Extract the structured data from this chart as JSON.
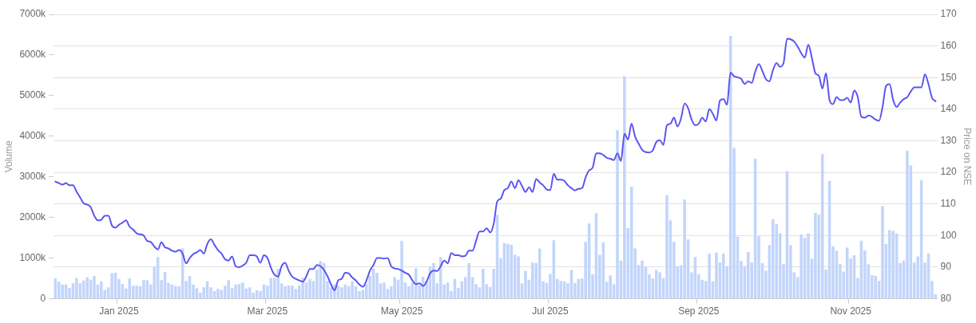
{
  "chart_data": {
    "type": "bar",
    "ylabel": "Volume",
    "y2label": "Price on NSE",
    "categories": [
      null,
      null,
      null,
      null,
      null,
      null,
      null,
      null,
      null,
      null,
      null,
      null,
      null,
      null,
      null,
      null,
      null,
      null,
      "Jan 2025",
      null,
      null,
      null,
      null,
      null,
      null,
      null,
      null,
      null,
      null,
      null,
      null,
      null,
      null,
      null,
      null,
      null,
      null,
      null,
      null,
      null,
      null,
      null,
      null,
      null,
      null,
      null,
      null,
      null,
      null,
      null,
      null,
      null,
      null,
      null,
      null,
      null,
      null,
      null,
      null,
      null,
      "Mar 2025",
      null,
      null,
      null,
      null,
      null,
      null,
      null,
      null,
      null,
      null,
      null,
      null,
      null,
      null,
      null,
      null,
      null,
      null,
      null,
      null,
      null,
      null,
      null,
      null,
      null,
      null,
      null,
      null,
      null,
      null,
      null,
      null,
      null,
      null,
      null,
      null,
      null,
      "May 2025",
      null,
      null,
      null,
      null,
      null,
      null,
      null,
      null,
      null,
      null,
      null,
      null,
      null,
      null,
      null,
      null,
      null,
      null,
      null,
      null,
      null,
      null,
      null,
      null,
      null,
      null,
      null,
      null,
      null,
      null,
      null,
      null,
      null,
      null,
      null,
      null,
      null,
      null,
      null,
      null,
      null,
      "Jul 2025",
      null,
      null,
      null,
      null,
      null,
      null,
      null,
      null,
      null,
      null,
      null,
      null,
      null,
      null,
      null,
      null,
      null,
      null,
      null,
      null,
      null,
      null,
      null,
      null,
      null,
      null,
      null,
      null,
      null,
      null,
      null,
      null,
      null,
      null,
      null,
      null,
      null,
      null,
      null,
      null,
      null,
      "Sep 2025",
      null,
      null,
      null,
      null,
      null,
      null,
      null,
      null,
      null,
      null,
      null,
      null,
      null,
      null,
      null,
      null,
      null,
      null,
      null,
      null,
      null,
      null,
      null,
      null,
      null,
      null,
      null,
      null,
      null,
      null,
      null,
      null,
      null,
      null,
      null,
      null,
      null,
      null,
      null,
      null,
      null,
      null,
      "Nov 2025",
      null,
      null,
      null,
      null,
      null,
      null,
      null,
      null,
      null,
      null,
      null,
      null,
      null,
      null,
      null,
      null,
      null,
      null,
      null,
      null,
      null,
      null,
      null,
      null
    ],
    "series": [
      {
        "color": "#c2d5fb",
        "values": [
          500,
          420,
          350,
          350,
          260,
          380,
          510,
          380,
          450,
          530,
          470,
          560,
          350,
          430,
          220,
          280,
          630,
          640,
          490,
          360,
          250,
          500,
          320,
          320,
          310,
          460,
          460,
          350,
          790,
          1030,
          460,
          660,
          390,
          350,
          310,
          310,
          1240,
          440,
          560,
          350,
          260,
          150,
          280,
          430,
          280,
          190,
          240,
          220,
          320,
          460,
          260,
          350,
          360,
          400,
          250,
          280,
          150,
          210,
          190,
          350,
          320,
          510,
          510,
          740,
          380,
          310,
          330,
          320,
          240,
          330,
          510,
          400,
          490,
          440,
          720,
          930,
          880,
          440,
          280,
          350,
          320,
          280,
          350,
          310,
          430,
          310,
          190,
          220,
          360,
          560,
          740,
          640,
          380,
          400,
          240,
          310,
          530,
          470,
          1420,
          400,
          310,
          400,
          750,
          330,
          540,
          440,
          790,
          880,
          380,
          1030,
          350,
          400,
          190,
          490,
          260,
          430,
          530,
          880,
          530,
          360,
          280,
          740,
          360,
          290,
          740,
          2070,
          1000,
          1370,
          1350,
          1330,
          1080,
          1040,
          380,
          690,
          470,
          890,
          880,
          1240,
          430,
          390,
          610,
          1440,
          490,
          440,
          430,
          380,
          710,
          390,
          490,
          500,
          1400,
          1850,
          600,
          2100,
          1080,
          1390,
          420,
          570,
          360,
          4150,
          940,
          5480,
          1740,
          2760,
          1240,
          830,
          940,
          790,
          600,
          500,
          710,
          650,
          510,
          2550,
          1930,
          1400,
          800,
          820,
          2440,
          1460,
          650,
          1030,
          600,
          460,
          440,
          1110,
          430,
          1140,
          890,
          1110,
          800,
          6470,
          3710,
          1530,
          930,
          800,
          1150,
          890,
          3440,
          1540,
          880,
          690,
          1320,
          1960,
          1840,
          1610,
          850,
          3140,
          1320,
          650,
          530,
          1580,
          1500,
          1610,
          990,
          2110,
          2070,
          3560,
          720,
          2900,
          1290,
          1180,
          850,
          670,
          1260,
          990,
          1070,
          510,
          1430,
          1190,
          850,
          580,
          560,
          440,
          2280,
          1350,
          1690,
          1670,
          1610,
          880,
          940,
          3640,
          3280,
          890,
          1040,
          2920,
          890,
          1110,
          440,
          110
        ]
      },
      {
        "type": "line",
        "axis": "y2",
        "color": "#5b55f2",
        "values": [
          117.1,
          116.6,
          116.1,
          116.6,
          115.9,
          115.9,
          113.9,
          112.1,
          110.2,
          109.8,
          109,
          106.3,
          104.8,
          105,
          106.3,
          106.3,
          103.2,
          102.5,
          103.4,
          104.1,
          104.8,
          102.8,
          101.9,
          100.7,
          100.4,
          100,
          98.3,
          98,
          96.5,
          95.6,
          97.9,
          96.3,
          95.9,
          95.2,
          94.9,
          95.4,
          94.3,
          91.2,
          92.9,
          94.1,
          94.7,
          95.4,
          94.3,
          97.4,
          98.8,
          97.1,
          95.4,
          94.3,
          92.5,
          92.1,
          93.4,
          90.3,
          90,
          90.5,
          91.4,
          93.8,
          93.8,
          93.4,
          91.4,
          93.8,
          92.9,
          89.8,
          87.6,
          87,
          90.3,
          91.4,
          88.9,
          87,
          86.3,
          85.8,
          85.4,
          87.1,
          89.4,
          89.4,
          90.7,
          90.3,
          89.1,
          87.1,
          84.5,
          82.7,
          85.8,
          86.3,
          88.2,
          88,
          86.7,
          85.8,
          84.5,
          83.8,
          85.8,
          88.9,
          90.7,
          92.9,
          92.9,
          92.7,
          92.9,
          90.3,
          89.6,
          89.4,
          88.9,
          88.2,
          87.6,
          85.8,
          84.6,
          84.9,
          84,
          85.4,
          88,
          88.9,
          88.8,
          90.3,
          92.1,
          91.2,
          94.5,
          93.8,
          93.8,
          93.4,
          93.6,
          95.2,
          95.2,
          98.3,
          101.3,
          101.3,
          102.3,
          101,
          103.7,
          110.8,
          111.7,
          114.4,
          115,
          117.1,
          115,
          117.5,
          115.7,
          113.8,
          115.3,
          113.8,
          117.9,
          116.8,
          115.9,
          114.6,
          114.4,
          119.5,
          117.7,
          117.7,
          117.3,
          115.9,
          115,
          114.3,
          114.8,
          115,
          118.4,
          120.6,
          121.5,
          126,
          126,
          125.5,
          124.6,
          124.3,
          123.9,
          126,
          123.6,
          132.2,
          130.4,
          135.4,
          131.3,
          129.1,
          127.1,
          126.4,
          126.3,
          126.9,
          129.6,
          130.2,
          128.7,
          134.9,
          135.4,
          137.3,
          134.5,
          137.1,
          141.8,
          140.3,
          136.7,
          134.9,
          135.4,
          137.3,
          136.1,
          140,
          138.5,
          136.4,
          142.7,
          143.2,
          141.4,
          151.6,
          150.4,
          150.1,
          149.6,
          148,
          148.8,
          148.3,
          151.9,
          154.3,
          152.1,
          149.5,
          148.8,
          152.3,
          154.6,
          153.4,
          154.6,
          162.3,
          162.1,
          161.4,
          159.8,
          157.7,
          156.3,
          160.4,
          156.3,
          151.4,
          150.5,
          146.5,
          151.4,
          142.9,
          141.6,
          143.8,
          142.9,
          142.9,
          143.6,
          142.1,
          145.9,
          143.8,
          137.6,
          137.3,
          138,
          137.6,
          136.7,
          136.3,
          140.7,
          147.4,
          147.9,
          142.9,
          140.7,
          142.1,
          143.2,
          143.8,
          145.6,
          146.9,
          146.9,
          146.9,
          151,
          147.9,
          143.6,
          142.5
        ]
      }
    ],
    "ylim": [
      0,
      7000
    ],
    "yticks": [
      0,
      {
        "value": 1000,
        "label": "1000k"
      },
      {
        "value": 2000,
        "label": "2000k"
      },
      {
        "value": 3000,
        "label": "3000k"
      },
      {
        "value": 4000,
        "label": "4000k"
      },
      {
        "value": 5000,
        "label": "5000k"
      },
      {
        "value": 6000,
        "label": "6000k"
      },
      {
        "value": 7000,
        "label": "7000k"
      }
    ],
    "y2lim": [
      80,
      170
    ],
    "y2ticks": [
      80,
      90,
      100,
      110,
      120,
      130,
      140,
      150,
      160,
      170
    ],
    "grid": "y2",
    "legend": false
  }
}
